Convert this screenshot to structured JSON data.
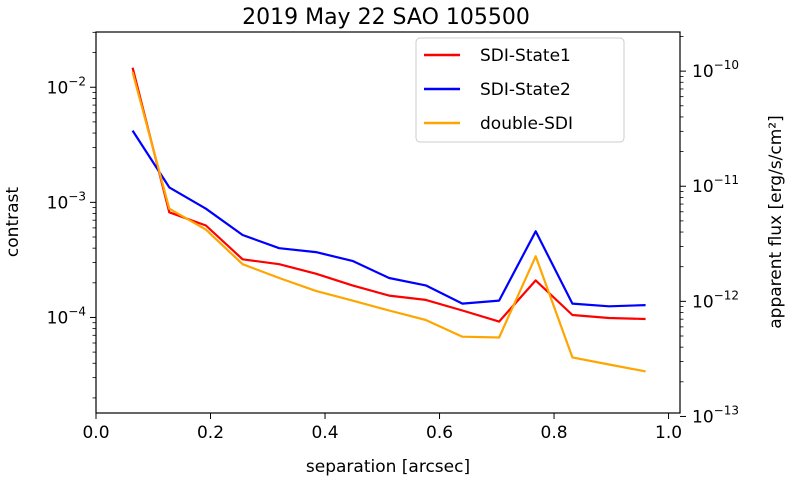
{
  "chart_data": {
    "type": "line",
    "title": "2019 May 22 SAO 105500",
    "xlabel": "separation [arcsec]",
    "ylabel": "contrast",
    "ylabel_right": "apparent flux [erg/s/cm²]",
    "xlim": [
      0.0,
      1.02
    ],
    "ylim_log10": [
      -4.83,
      -1.52
    ],
    "yscale": "log",
    "x_ticks": [
      {
        "value": 0.0,
        "label": "0.0"
      },
      {
        "value": 0.2,
        "label": "0.2"
      },
      {
        "value": 0.4,
        "label": "0.4"
      },
      {
        "value": 0.6,
        "label": "0.6"
      },
      {
        "value": 0.8,
        "label": "0.8"
      },
      {
        "value": 1.0,
        "label": "1.0"
      }
    ],
    "y_ticks_left": [
      {
        "exp": -2,
        "base": "10",
        "sup": "−2"
      },
      {
        "exp": -3,
        "base": "10",
        "sup": "−3"
      },
      {
        "exp": -4,
        "base": "10",
        "sup": "−4"
      }
    ],
    "y_ticks_right": [
      {
        "exp": -10,
        "base": "10",
        "sup": "−10"
      },
      {
        "exp": -11,
        "base": "10",
        "sup": "−11"
      },
      {
        "exp": -12,
        "base": "10",
        "sup": "−12"
      },
      {
        "exp": -13,
        "base": "10",
        "sup": "−13"
      }
    ],
    "right_axis_log10_range": [
      -12.97,
      -9.66
    ],
    "x": [
      0.064,
      0.128,
      0.192,
      0.256,
      0.32,
      0.384,
      0.448,
      0.512,
      0.576,
      0.64,
      0.704,
      0.768,
      0.832,
      0.896,
      0.96
    ],
    "series": [
      {
        "name": "SDI-State1",
        "color": "#ff0000",
        "values": [
          0.0148,
          0.00082,
          0.00063,
          0.00032,
          0.00029,
          0.00024,
          0.00019,
          0.000155,
          0.000142,
          0.000115,
          9.2e-05,
          0.00021,
          0.000105,
          9.9e-05,
          9.7e-05
        ]
      },
      {
        "name": "SDI-State2",
        "color": "#0000ff",
        "values": [
          0.0042,
          0.00135,
          0.00088,
          0.00052,
          0.0004,
          0.00037,
          0.00031,
          0.00022,
          0.00019,
          0.000132,
          0.00014,
          0.00056,
          0.000132,
          0.000125,
          0.000128
        ]
      },
      {
        "name": "double-SDI",
        "color": "#ffa500",
        "values": [
          0.0135,
          0.00088,
          0.00058,
          0.00029,
          0.00022,
          0.00017,
          0.00014,
          0.000115,
          9.5e-05,
          6.8e-05,
          6.7e-05,
          0.00034,
          4.5e-05,
          3.9e-05,
          3.4e-05
        ]
      }
    ],
    "legend_position": "top-right",
    "grid": false
  }
}
